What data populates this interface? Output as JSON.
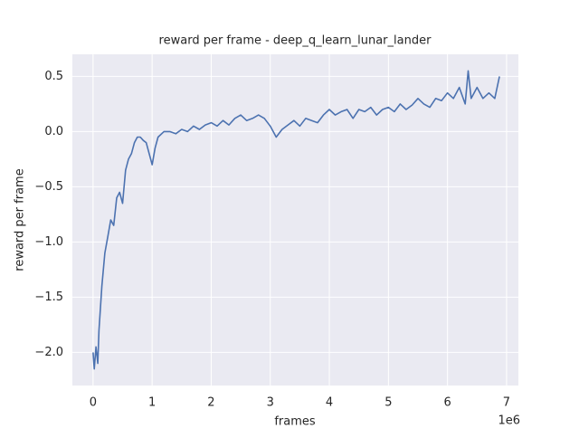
{
  "chart_data": {
    "type": "line",
    "title": "reward per frame - deep_q_learn_lunar_lander",
    "xlabel": "frames",
    "ylabel": "reward per frame",
    "x_offset_label": "1e6",
    "x": [
      0,
      0.02,
      0.05,
      0.08,
      0.1,
      0.15,
      0.2,
      0.25,
      0.3,
      0.35,
      0.4,
      0.45,
      0.5,
      0.55,
      0.6,
      0.65,
      0.7,
      0.75,
      0.8,
      0.85,
      0.9,
      0.95,
      1.0,
      1.05,
      1.1,
      1.2,
      1.3,
      1.4,
      1.5,
      1.6,
      1.7,
      1.8,
      1.9,
      2.0,
      2.1,
      2.2,
      2.3,
      2.4,
      2.5,
      2.6,
      2.7,
      2.8,
      2.9,
      3.0,
      3.1,
      3.2,
      3.3,
      3.4,
      3.5,
      3.6,
      3.7,
      3.8,
      3.9,
      4.0,
      4.1,
      4.2,
      4.3,
      4.4,
      4.5,
      4.6,
      4.7,
      4.8,
      4.9,
      5.0,
      5.1,
      5.2,
      5.3,
      5.4,
      5.5,
      5.6,
      5.7,
      5.8,
      5.9,
      6.0,
      6.1,
      6.2,
      6.3,
      6.35,
      6.4,
      6.5,
      6.6,
      6.7,
      6.8,
      6.88
    ],
    "series": [
      {
        "name": "reward per frame",
        "color": "#4c72b0",
        "values": [
          -2.0,
          -2.15,
          -1.95,
          -2.1,
          -1.8,
          -1.4,
          -1.1,
          -0.95,
          -0.8,
          -0.85,
          -0.6,
          -0.55,
          -0.65,
          -0.35,
          -0.25,
          -0.2,
          -0.1,
          -0.05,
          -0.05,
          -0.08,
          -0.1,
          -0.2,
          -0.3,
          -0.15,
          -0.05,
          0.0,
          0.0,
          -0.02,
          0.02,
          0.0,
          0.05,
          0.02,
          0.06,
          0.08,
          0.05,
          0.1,
          0.06,
          0.12,
          0.15,
          0.1,
          0.12,
          0.15,
          0.12,
          0.05,
          -0.05,
          0.02,
          0.06,
          0.1,
          0.05,
          0.12,
          0.1,
          0.08,
          0.15,
          0.2,
          0.15,
          0.18,
          0.2,
          0.12,
          0.2,
          0.18,
          0.22,
          0.15,
          0.2,
          0.22,
          0.18,
          0.25,
          0.2,
          0.24,
          0.3,
          0.25,
          0.22,
          0.3,
          0.28,
          0.35,
          0.3,
          0.4,
          0.25,
          0.55,
          0.3,
          0.4,
          0.3,
          0.35,
          0.3,
          0.5
        ]
      }
    ],
    "xlim": [
      -0.35,
      7.2
    ],
    "ylim": [
      -2.3,
      0.7
    ],
    "xticks": [
      0,
      1,
      2,
      3,
      4,
      5,
      6,
      7
    ],
    "yticks": [
      {
        "value": -2,
        "label": "−2.0"
      },
      {
        "value": -1.5,
        "label": "−1.5"
      },
      {
        "value": -1,
        "label": "−1.0"
      },
      {
        "value": -0.5,
        "label": "−0.5"
      },
      {
        "value": 0,
        "label": "0.0"
      },
      {
        "value": 0.5,
        "label": "0.5"
      }
    ],
    "grid": true
  }
}
